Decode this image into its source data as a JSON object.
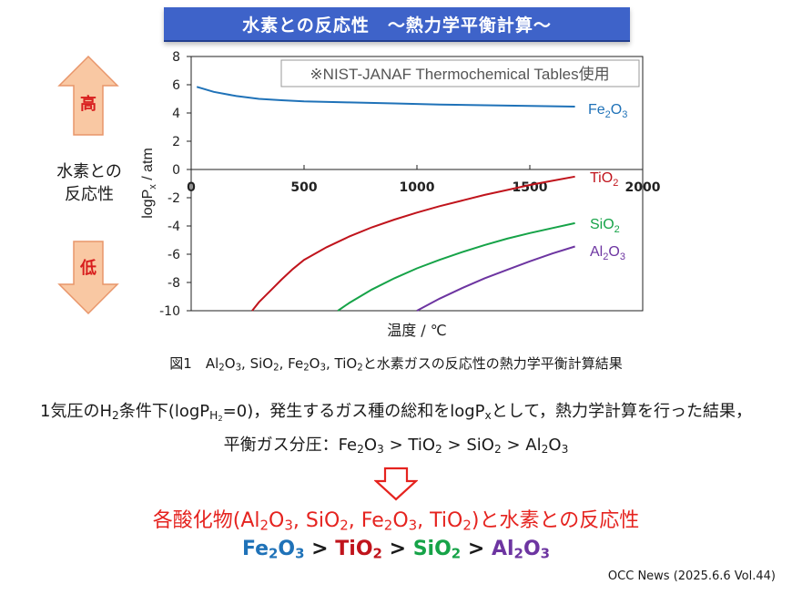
{
  "title": "水素との反応性　～熱力学平衡計算～",
  "side_label": {
    "high": "高",
    "low": "低",
    "line1": "水素との",
    "line2": "反応性"
  },
  "colors": {
    "title_bg": "#3e63c9",
    "arrow_fill": "#f9c8a3",
    "arrow_stroke": "#e8956a",
    "accent_red": "#e5231f",
    "fe2o3": "#1f72b8",
    "tio2": "#c0141c",
    "sio2": "#16a348",
    "al2o3": "#6d35a1"
  },
  "caption": {
    "prefix": "図1　",
    "compounds": [
      {
        "base": "Al",
        "sub1": "2",
        "mid": "O",
        "sub2": "3"
      },
      {
        "base": "Si",
        "sub1": "",
        "mid": "O",
        "sub2": "2"
      },
      {
        "base": "Fe",
        "sub1": "2",
        "mid": "O",
        "sub2": "3"
      },
      {
        "base": "Ti",
        "sub1": "",
        "mid": "O",
        "sub2": "2"
      }
    ],
    "suffix": "と水素ガスの反応性の熱力学平衡計算結果"
  },
  "body": {
    "line1_a": "1気圧のH",
    "line1_sub_h2": "2",
    "line1_b": "条件下(logP",
    "line1_sub_ph": "H",
    "line1_sub_ph2": "2",
    "line1_c": "=0)，発生するガス種の総和をlogP",
    "line1_sub_x": "x",
    "line1_d": "として，熱力学計算を行った結果，",
    "line2_prefix": "平衡ガス分圧：",
    "line2_order": [
      {
        "base": "Fe",
        "sub1": "2",
        "mid": "O",
        "sub2": "3"
      },
      {
        "base": "TiO",
        "sub1": "",
        "mid": "",
        "sub2": "2"
      },
      {
        "base": "SiO",
        "sub1": "",
        "mid": "",
        "sub2": "2"
      },
      {
        "base": "Al",
        "sub1": "2",
        "mid": "O",
        "sub2": "3"
      }
    ],
    "gt": " > ",
    "line3_a": "各酸化物(",
    "line3_b": ")と水素との反応性",
    "line4_order": [
      {
        "base": "Fe",
        "sub1": "2",
        "mid": "O",
        "sub2": "3",
        "color": "#1f72b8"
      },
      {
        "base": "TiO",
        "sub1": "",
        "mid": "",
        "sub2": "2",
        "color": "#c0141c"
      },
      {
        "base": "SiO",
        "sub1": "",
        "mid": "",
        "sub2": "2",
        "color": "#16a348"
      },
      {
        "base": "Al",
        "sub1": "2",
        "mid": "O",
        "sub2": "3",
        "color": "#6d35a1"
      }
    ]
  },
  "footer": "OCC News (2025.6.6 Vol.44)",
  "chart_data": {
    "type": "line",
    "xlabel": "温度 / ℃",
    "ylabel_base": "logP",
    "ylabel_sub": "x",
    "ylabel_unit": " / atm",
    "xlim": [
      0,
      2000
    ],
    "ylim": [
      -10,
      8
    ],
    "xticks": [
      0,
      500,
      1000,
      1500,
      2000
    ],
    "yticks": [
      8,
      6,
      4,
      2,
      0,
      -2,
      -4,
      -6,
      -8,
      -10
    ],
    "grid": false,
    "annotation": "※NIST-JANAF Thermochemical Tables使用",
    "series": [
      {
        "key": "fe2o3",
        "label_base": "Fe",
        "label_sub1": "2",
        "label_mid": "O",
        "label_sub2": "3",
        "color": "#1f72b8",
        "x": [
          25,
          100,
          200,
          300,
          400,
          500,
          700,
          900,
          1100,
          1300,
          1500,
          1700
        ],
        "y": [
          5.85,
          5.5,
          5.2,
          5.0,
          4.9,
          4.82,
          4.75,
          4.68,
          4.6,
          4.55,
          4.5,
          4.45
        ]
      },
      {
        "key": "tio2",
        "label_base": "TiO",
        "label_sub1": "",
        "label_mid": "",
        "label_sub2": "2",
        "color": "#c0141c",
        "x": [
          270,
          300,
          350,
          400,
          450,
          500,
          600,
          700,
          800,
          900,
          1000,
          1100,
          1200,
          1300,
          1400,
          1500,
          1600,
          1700
        ],
        "y": [
          -10.0,
          -9.4,
          -8.6,
          -7.8,
          -7.05,
          -6.4,
          -5.5,
          -4.75,
          -4.1,
          -3.55,
          -3.05,
          -2.6,
          -2.2,
          -1.8,
          -1.45,
          -1.1,
          -0.8,
          -0.5
        ]
      },
      {
        "key": "sio2",
        "label_base": "SiO",
        "label_sub1": "",
        "label_mid": "",
        "label_sub2": "2",
        "color": "#16a348",
        "x": [
          650,
          700,
          800,
          900,
          1000,
          1100,
          1200,
          1300,
          1400,
          1500,
          1600,
          1700
        ],
        "y": [
          -10.0,
          -9.45,
          -8.5,
          -7.7,
          -7.0,
          -6.4,
          -5.85,
          -5.35,
          -4.9,
          -4.5,
          -4.15,
          -3.8
        ]
      },
      {
        "key": "al2o3",
        "label_base": "Al",
        "label_sub1": "2",
        "label_mid": "O",
        "label_sub2": "3",
        "color": "#6d35a1",
        "x": [
          1000,
          1100,
          1200,
          1300,
          1400,
          1500,
          1600,
          1700
        ],
        "y": [
          -10.0,
          -9.15,
          -8.4,
          -7.7,
          -7.1,
          -6.5,
          -5.95,
          -5.45
        ]
      }
    ]
  }
}
